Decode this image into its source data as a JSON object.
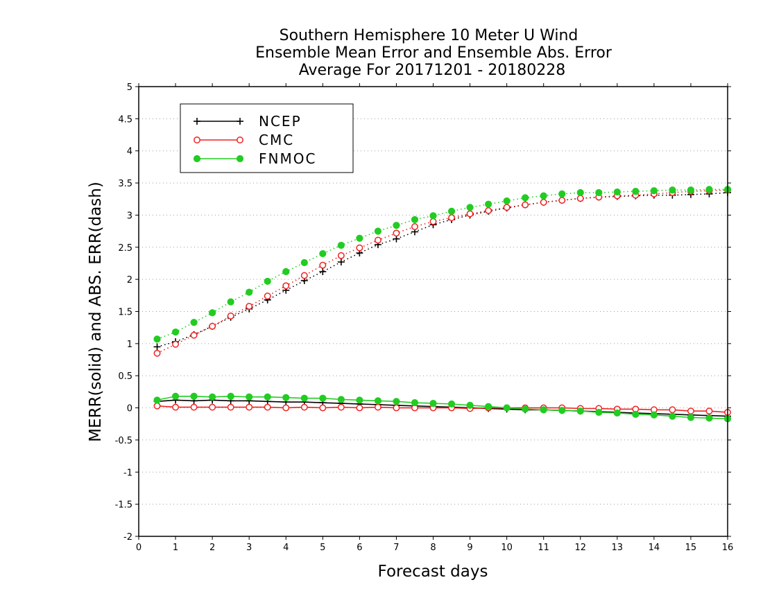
{
  "chart_data": {
    "type": "line",
    "title": [
      "Southern Hemisphere 10 Meter U Wind",
      "Ensemble Mean Error and Ensemble Abs. Error",
      "Average For 20171201 - 20180228"
    ],
    "xlabel": "Forecast days",
    "ylabel": "MERR(solid) and ABS. ERR(dash)",
    "xlim": [
      0,
      16
    ],
    "ylim": [
      -2,
      5
    ],
    "xticks": [
      0,
      1,
      2,
      3,
      4,
      5,
      6,
      7,
      8,
      9,
      10,
      11,
      12,
      13,
      14,
      15,
      16
    ],
    "yticks": [
      -2,
      -1.5,
      -1,
      -0.5,
      0,
      0.5,
      1,
      1.5,
      2,
      2.5,
      3,
      3.5,
      4,
      4.5,
      5
    ],
    "grid": "horizontal dotted",
    "legend_position": "top-left",
    "x": [
      0.5,
      1,
      1.5,
      2,
      2.5,
      3,
      3.5,
      4,
      4.5,
      5,
      5.5,
      6,
      6.5,
      7,
      7.5,
      8,
      8.5,
      9,
      9.5,
      10,
      10.5,
      11,
      11.5,
      12,
      12.5,
      13,
      13.5,
      14,
      14.5,
      15,
      15.5,
      16
    ],
    "series": [
      {
        "name": "NCEP",
        "color": "#000000",
        "marker": "plus",
        "merr": [
          0.1,
          0.12,
          0.11,
          0.12,
          0.11,
          0.11,
          0.1,
          0.09,
          0.09,
          0.08,
          0.07,
          0.06,
          0.05,
          0.04,
          0.03,
          0.02,
          0.01,
          0.0,
          -0.01,
          -0.02,
          -0.03,
          -0.03,
          -0.04,
          -0.05,
          -0.06,
          -0.07,
          -0.08,
          -0.09,
          -0.1,
          -0.11,
          -0.12,
          -0.13
        ],
        "abs_err": [
          0.95,
          1.03,
          1.14,
          1.27,
          1.41,
          1.54,
          1.68,
          1.83,
          1.98,
          2.12,
          2.27,
          2.41,
          2.54,
          2.63,
          2.74,
          2.85,
          2.93,
          3.0,
          3.06,
          3.11,
          3.16,
          3.2,
          3.23,
          3.26,
          3.28,
          3.29,
          3.3,
          3.31,
          3.31,
          3.32,
          3.33,
          3.35
        ]
      },
      {
        "name": "CMC",
        "color": "#ee2222",
        "marker": "open-circle",
        "merr": [
          0.03,
          0.01,
          0.01,
          0.01,
          0.01,
          0.01,
          0.01,
          0.0,
          0.01,
          0.0,
          0.01,
          0.0,
          0.01,
          0.0,
          0.0,
          0.0,
          0.0,
          -0.01,
          0.0,
          0.0,
          0.0,
          0.0,
          0.0,
          -0.01,
          -0.01,
          -0.02,
          -0.02,
          -0.03,
          -0.03,
          -0.05,
          -0.05,
          -0.07
        ],
        "abs_err": [
          0.85,
          0.99,
          1.13,
          1.27,
          1.43,
          1.58,
          1.74,
          1.9,
          2.06,
          2.22,
          2.37,
          2.49,
          2.61,
          2.72,
          2.82,
          2.9,
          2.96,
          3.02,
          3.07,
          3.12,
          3.16,
          3.2,
          3.23,
          3.26,
          3.28,
          3.3,
          3.31,
          3.33,
          3.35,
          3.37,
          3.38,
          3.39
        ]
      },
      {
        "name": "FNMOC",
        "color": "#22cc22",
        "marker": "filled-circle",
        "merr": [
          0.12,
          0.18,
          0.18,
          0.17,
          0.18,
          0.17,
          0.17,
          0.16,
          0.15,
          0.15,
          0.13,
          0.12,
          0.11,
          0.1,
          0.08,
          0.07,
          0.06,
          0.04,
          0.02,
          0.0,
          -0.02,
          -0.03,
          -0.04,
          -0.05,
          -0.07,
          -0.08,
          -0.1,
          -0.11,
          -0.13,
          -0.15,
          -0.16,
          -0.17
        ],
        "abs_err": [
          1.07,
          1.18,
          1.33,
          1.48,
          1.65,
          1.8,
          1.97,
          2.12,
          2.26,
          2.4,
          2.53,
          2.64,
          2.75,
          2.84,
          2.93,
          2.99,
          3.06,
          3.12,
          3.17,
          3.22,
          3.27,
          3.3,
          3.33,
          3.35,
          3.35,
          3.36,
          3.37,
          3.38,
          3.39,
          3.39,
          3.4,
          3.4
        ]
      }
    ]
  }
}
